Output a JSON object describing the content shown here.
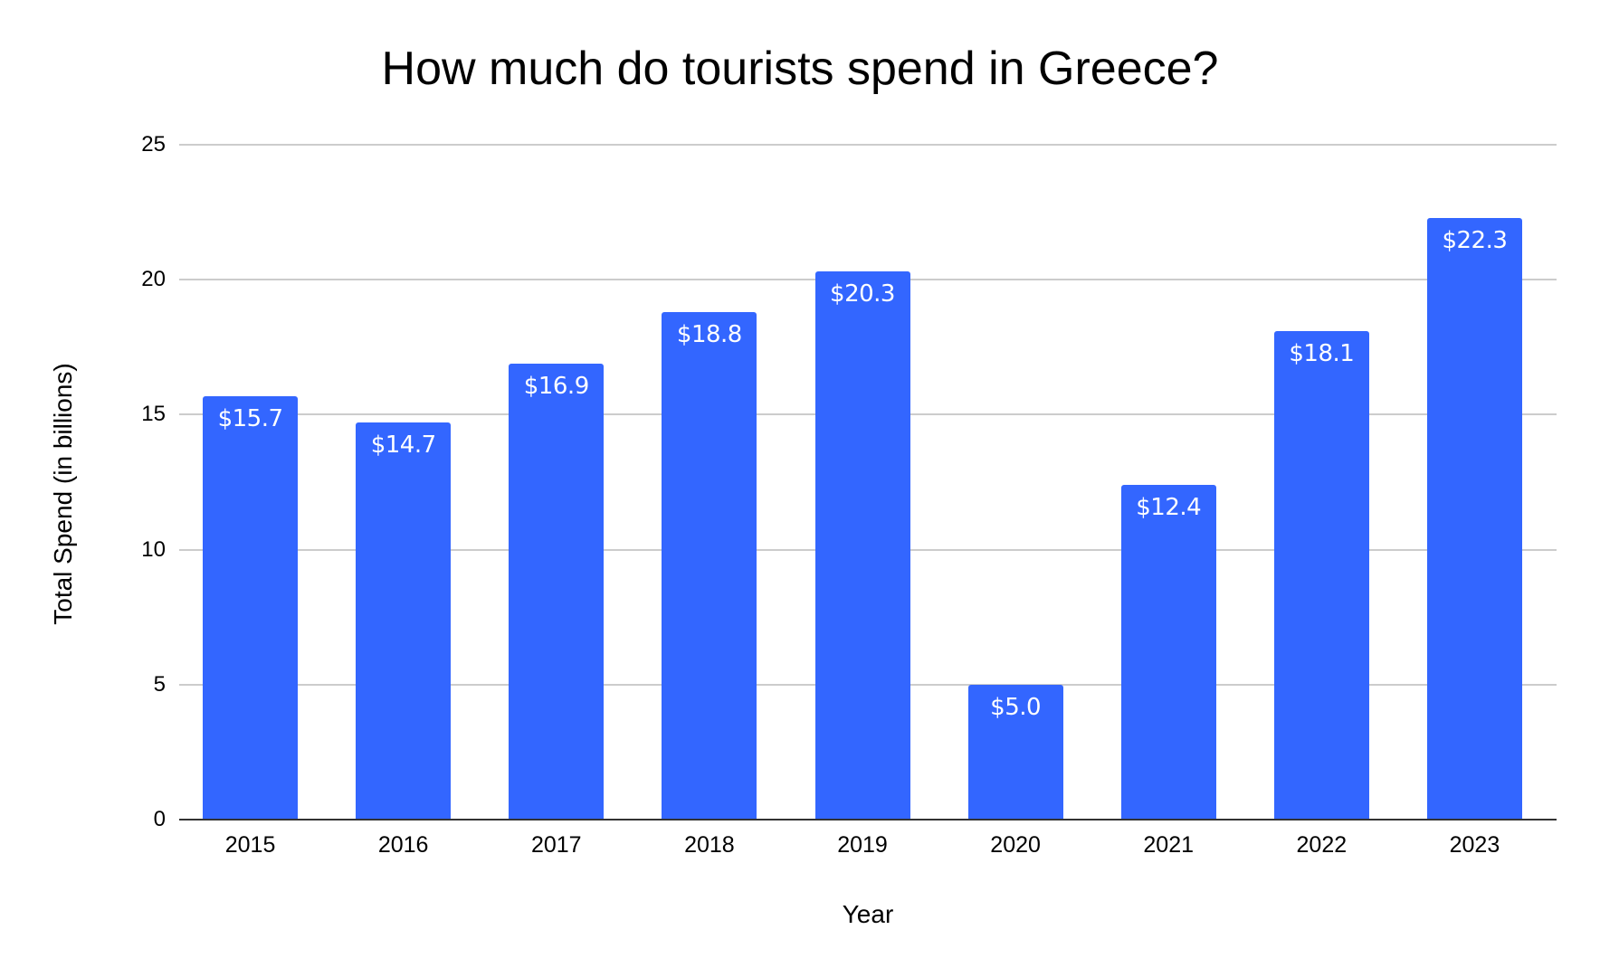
{
  "chart_data": {
    "type": "bar",
    "title": "How much do tourists spend in Greece?",
    "xlabel": "Year",
    "ylabel": "Total Spend (in billions)",
    "categories": [
      "2015",
      "2016",
      "2017",
      "2018",
      "2019",
      "2020",
      "2021",
      "2022",
      "2023"
    ],
    "values": [
      15.7,
      14.7,
      16.9,
      18.8,
      20.3,
      5.0,
      12.4,
      18.1,
      22.3
    ],
    "data_labels": [
      "$15.7",
      "$14.7",
      "$16.9",
      "$18.8",
      "$20.3",
      "$5.0",
      "$12.4",
      "$18.1",
      "$22.3"
    ],
    "ylim": [
      0,
      25
    ],
    "yticks": [
      "0",
      "5",
      "10",
      "15",
      "20",
      "25"
    ],
    "grid": true,
    "legend": null,
    "bar_color": "#3366ff"
  }
}
